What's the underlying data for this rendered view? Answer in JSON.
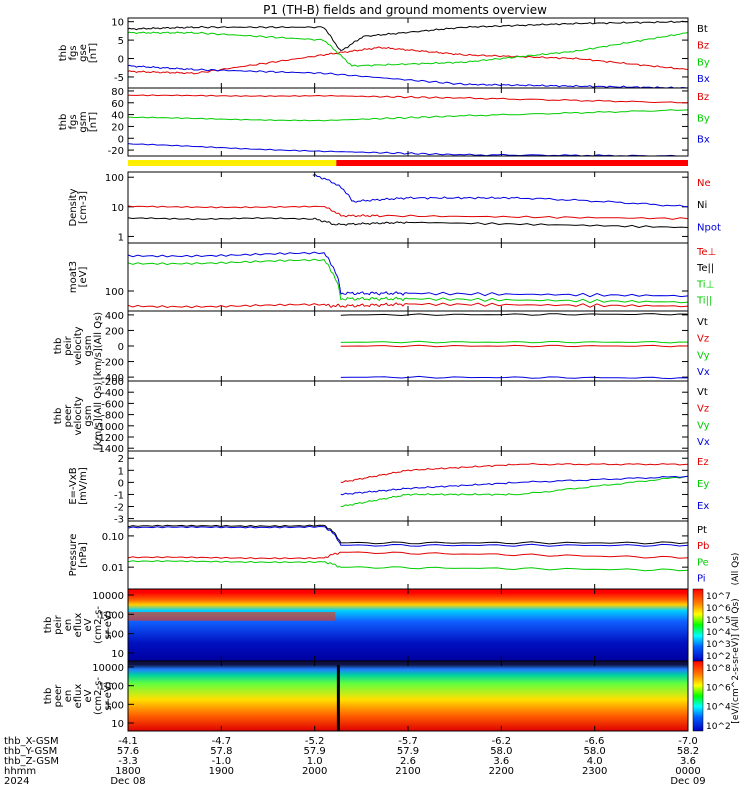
{
  "title": "P1 (TH-B) fields and ground moments overview",
  "colors": {
    "black": "#000000",
    "red": "#e00000",
    "green": "#00cc00",
    "blue": "#0000e0",
    "yellow": "#ffee00",
    "barred": "#ff0000"
  },
  "chart_data": [
    {
      "id": "fgs_gse",
      "type": "line",
      "ylabel": [
        "thb",
        "fgs",
        "gse",
        "[nT]"
      ],
      "ylim": [
        -8,
        11
      ],
      "yticks": [
        10,
        5,
        0,
        -5
      ],
      "legend": [
        "Bt",
        "Bz",
        "By",
        "Bx"
      ],
      "legend_colors": [
        "black",
        "red",
        "green",
        "blue"
      ],
      "series": [
        {
          "name": "Bt",
          "color": "black",
          "x": [
            0,
            0.12,
            0.35,
            0.38,
            0.42,
            0.6,
            0.8,
            1
          ],
          "y": [
            8,
            8.5,
            8.5,
            2,
            6,
            8.5,
            9.5,
            10
          ]
        },
        {
          "name": "Bz",
          "color": "red",
          "x": [
            0,
            0.12,
            0.35,
            0.45,
            0.6,
            0.8,
            1
          ],
          "y": [
            -3.5,
            -4,
            1,
            3,
            1,
            0,
            -3
          ]
        },
        {
          "name": "By",
          "color": "green",
          "x": [
            0,
            0.12,
            0.35,
            0.4,
            0.6,
            0.8,
            1
          ],
          "y": [
            7,
            7,
            5,
            -2,
            -1,
            2,
            7
          ]
        },
        {
          "name": "Bx",
          "color": "blue",
          "x": [
            0,
            0.12,
            0.35,
            0.6,
            0.8,
            1
          ],
          "y": [
            -2,
            -3,
            -4,
            -7,
            -7.5,
            -8
          ]
        }
      ]
    },
    {
      "id": "fgs_gsm",
      "type": "line",
      "ylabel": [
        "thb",
        "fgs",
        "gsm",
        "[nT]"
      ],
      "ylim": [
        -30,
        85
      ],
      "yticks": [
        80,
        60,
        40,
        20,
        0,
        -20
      ],
      "legend": [
        "Bz",
        "By",
        "Bx"
      ],
      "legend_colors": [
        "red",
        "green",
        "blue"
      ],
      "series": [
        {
          "name": "Bz",
          "color": "red",
          "x": [
            0,
            0.35,
            0.6,
            1
          ],
          "y": [
            72,
            72,
            68,
            60
          ]
        },
        {
          "name": "By",
          "color": "green",
          "x": [
            0,
            0.35,
            0.6,
            1
          ],
          "y": [
            35,
            30,
            38,
            48
          ]
        },
        {
          "name": "Bx",
          "color": "blue",
          "x": [
            0,
            0.35,
            0.6,
            1
          ],
          "y": [
            -10,
            -22,
            -28,
            -30
          ]
        }
      ]
    },
    {
      "id": "density",
      "type": "line",
      "log": true,
      "ylabel": [
        "Density",
        "[cm-3]"
      ],
      "ylim": [
        0.6,
        150
      ],
      "yticks": [
        100,
        10,
        1
      ],
      "legend": [
        "Ne",
        "Ni",
        "Npot"
      ],
      "legend_colors": [
        "red",
        "black",
        "blue"
      ],
      "series": [
        {
          "name": "Ne",
          "color": "red",
          "x": [
            0,
            0.35,
            0.38,
            0.45,
            1
          ],
          "y": [
            10,
            10,
            5,
            5,
            4
          ]
        },
        {
          "name": "Ni",
          "color": "black",
          "x": [
            0,
            0.33,
            0.37,
            0.5,
            1
          ],
          "y": [
            4,
            4,
            2.5,
            3,
            2
          ]
        },
        {
          "name": "Npot",
          "color": "blue",
          "x": [
            0.33,
            0.37,
            0.4,
            0.5,
            0.7,
            1
          ],
          "y": [
            120,
            60,
            15,
            20,
            20,
            10
          ]
        }
      ]
    },
    {
      "id": "temp",
      "type": "line",
      "log": true,
      "ylabel": [
        "moat3",
        "[eV]"
      ],
      "ylim": [
        40,
        900
      ],
      "yticks": [
        100
      ],
      "legend": [
        "Te⊥",
        "Te||",
        "Ti⊥",
        "Ti||"
      ],
      "legend_colors": [
        "red",
        "black",
        "green",
        "green"
      ],
      "series": [
        {
          "name": "Ti",
          "color": "blue",
          "x": [
            0,
            0.35,
            0.38,
            0.5,
            1
          ],
          "y": [
            500,
            550,
            90,
            90,
            80
          ]
        },
        {
          "name": "Ti||",
          "color": "green",
          "x": [
            0,
            0.35,
            0.38,
            0.5,
            1
          ],
          "y": [
            350,
            400,
            70,
            70,
            60
          ]
        },
        {
          "name": "Te",
          "color": "red",
          "x": [
            0,
            0.35,
            0.38,
            0.5,
            1
          ],
          "y": [
            50,
            52,
            50,
            55,
            50
          ]
        }
      ]
    },
    {
      "id": "vel_ion",
      "type": "line",
      "ylabel": [
        "thb",
        "peir",
        "velocity",
        "gsm",
        "[km/s](All Qs)"
      ],
      "ylim": [
        -450,
        450
      ],
      "yticks": [
        400,
        200,
        0,
        -200,
        -400
      ],
      "legend": [
        "Vt",
        "Vz",
        "Vy",
        "Vx"
      ],
      "legend_colors": [
        "black",
        "red",
        "green",
        "blue"
      ],
      "series": [
        {
          "name": "Vt",
          "color": "black",
          "x": [
            0.38,
            1
          ],
          "y": [
            400,
            410
          ]
        },
        {
          "name": "Vz",
          "color": "red",
          "x": [
            0.38,
            1
          ],
          "y": [
            0,
            0
          ]
        },
        {
          "name": "Vy",
          "color": "green",
          "x": [
            0.38,
            1
          ],
          "y": [
            50,
            50
          ]
        },
        {
          "name": "Vx",
          "color": "blue",
          "x": [
            0.38,
            1
          ],
          "y": [
            -400,
            -410
          ]
        }
      ]
    },
    {
      "id": "vel_elec",
      "type": "line",
      "ylabel": [
        "thb",
        "peer",
        "velocity",
        "gsm",
        "[km/s](All Qs)"
      ],
      "ylim": [
        -1450,
        -200
      ],
      "yticks": [
        -200,
        -400,
        -600,
        -800,
        -1000,
        -1200,
        -1400
      ],
      "legend": [
        "Vt",
        "Vz",
        "Vy",
        "Vx"
      ],
      "legend_colors": [
        "black",
        "red",
        "green",
        "blue"
      ],
      "series": []
    },
    {
      "id": "efield",
      "type": "line",
      "ylabel": [
        "E=-VxB",
        "[mV/m]"
      ],
      "ylim": [
        -3.2,
        2.6
      ],
      "yticks": [
        2,
        1,
        0,
        -1,
        -2,
        -3
      ],
      "legend": [
        "Ez",
        "Ey",
        "Ex"
      ],
      "legend_colors": [
        "red",
        "green",
        "blue"
      ],
      "series": [
        {
          "name": "Ez",
          "color": "red",
          "x": [
            0.38,
            0.5,
            0.7,
            1
          ],
          "y": [
            0,
            1,
            1.5,
            1.5
          ]
        },
        {
          "name": "Ey",
          "color": "green",
          "x": [
            0.38,
            0.5,
            0.7,
            1
          ],
          "y": [
            -2,
            -1,
            -1,
            0.5
          ]
        },
        {
          "name": "Ex",
          "color": "blue",
          "x": [
            0.38,
            0.5,
            0.7,
            1
          ],
          "y": [
            -1,
            -0.5,
            0,
            0.5
          ]
        }
      ]
    },
    {
      "id": "pressure",
      "type": "line",
      "log": true,
      "ylabel": [
        "Pressure",
        "[nPa]"
      ],
      "ylim": [
        0.002,
        0.3
      ],
      "yticks": [
        0.1,
        0.01
      ],
      "legend": [
        "Pt",
        "Pb",
        "Pe",
        "Pi"
      ],
      "legend_colors": [
        "black",
        "red",
        "green",
        "blue"
      ],
      "right_note": "(All Qs)",
      "series": [
        {
          "name": "Pt",
          "color": "black",
          "x": [
            0,
            0.35,
            0.38,
            1
          ],
          "y": [
            0.2,
            0.22,
            0.06,
            0.06
          ]
        },
        {
          "name": "Pb",
          "color": "red",
          "x": [
            0,
            0.35,
            0.38,
            1
          ],
          "y": [
            0.02,
            0.02,
            0.03,
            0.02
          ]
        },
        {
          "name": "Pe",
          "color": "green",
          "x": [
            0,
            0.35,
            0.38,
            1
          ],
          "y": [
            0.015,
            0.015,
            0.01,
            0.008
          ]
        },
        {
          "name": "Pi",
          "color": "blue",
          "x": [
            0,
            0.35,
            0.38,
            1
          ],
          "y": [
            0.18,
            0.2,
            0.05,
            0.05
          ]
        }
      ]
    },
    {
      "id": "peir_spec",
      "type": "heatmap",
      "ylabel": [
        "thb",
        "peir",
        "en",
        "eflux",
        "eV",
        "(cm2-s-",
        "sr-eV)"
      ],
      "yticks": [
        "10000",
        "1000",
        "100",
        "10"
      ],
      "colorbar_label": "[eV/(cm^2-s-sr-eV)] (All Qs)",
      "colorbar_ticks": [
        "10^7",
        "10^6",
        "10^5",
        "10^4",
        "10^3",
        "10^2"
      ]
    },
    {
      "id": "peer_spec",
      "type": "heatmap",
      "ylabel": [
        "thb",
        "peer",
        "en",
        "eflux",
        "eV",
        "(cm2-s-",
        "sr-eV)"
      ],
      "yticks": [
        "10000",
        "1000",
        "100",
        "10"
      ],
      "colorbar_label": "[eV/(cm^2-s-sr-eV)] (All Qs)",
      "colorbar_ticks": [
        "10^8",
        "10^6",
        "10^4",
        "10^2"
      ]
    }
  ],
  "xaxis": {
    "rows": [
      {
        "label": "thb_X-GSM",
        "values": [
          "-4.1",
          "-4.7",
          "-5.2",
          "-5.7",
          "-6.2",
          "-6.6",
          "-7.0"
        ]
      },
      {
        "label": "thb_Y-GSM",
        "values": [
          "57.6",
          "57.8",
          "57.9",
          "57.9",
          "58.0",
          "58.0",
          "58.2"
        ]
      },
      {
        "label": "thb_Z-GSM",
        "values": [
          "-3.3",
          "-1.0",
          "1.0",
          "2.6",
          "3.6",
          "4.0",
          "3.6"
        ]
      },
      {
        "label": "hhmm",
        "values": [
          "1800",
          "1900",
          "2000",
          "2100",
          "2200",
          "2300",
          "0000"
        ]
      },
      {
        "label": "2024",
        "values": [
          "Dec 08",
          "",
          "",
          "",
          "",
          "",
          "Dec 09"
        ]
      }
    ]
  }
}
